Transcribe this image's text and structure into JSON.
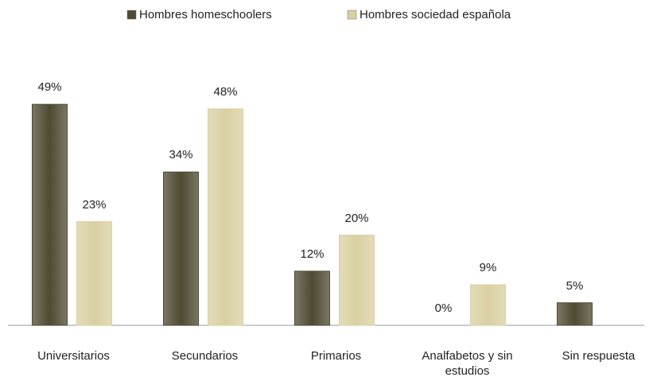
{
  "chart_data": {
    "type": "bar",
    "categories": [
      "Universitarios",
      "Secundarios",
      "Primarios",
      "Analfabetos y sin estudios",
      "Sin respuesta"
    ],
    "series": [
      {
        "name": "Hombres homeschoolers",
        "color": "#4f4a32",
        "values": [
          49,
          34,
          12,
          0,
          5
        ],
        "value_labels": [
          "49%",
          "34%",
          "12%",
          "0%",
          "5%"
        ]
      },
      {
        "name": "Hombres sociedad española",
        "color": "#d9d0a2",
        "values": [
          23,
          48,
          20,
          9,
          null
        ],
        "value_labels": [
          "23%",
          "48%",
          "20%",
          "9%",
          null
        ]
      }
    ]
  }
}
